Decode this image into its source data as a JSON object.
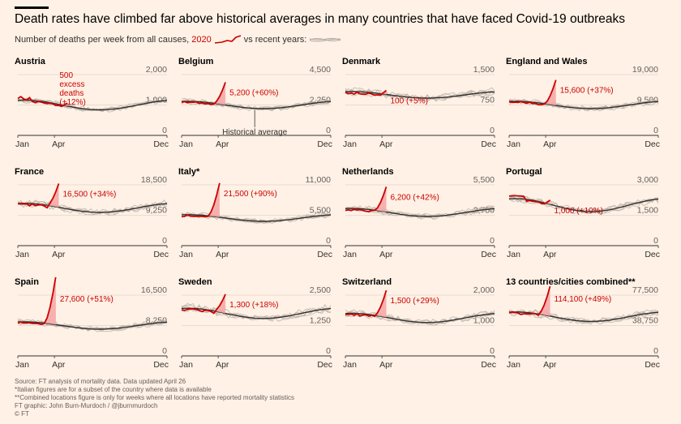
{
  "header": {
    "title": "Death rates have climbed far above historical averages in many countries that have faced Covid-19 outbreaks",
    "subtitle_before": "Number of deaths per week from all causes,",
    "subtitle_year": "2020",
    "subtitle_after": "vs recent years:"
  },
  "colors": {
    "background": "#fff1e5",
    "line_2020": "#cc0000",
    "excess_fill": "#f4a5a5",
    "historical": "#33302e",
    "recent_years": "#b5aca5"
  },
  "footer": {
    "source": "Source: FT analysis of mortality data. Data updated April 26",
    "note1": "*Italian figures are for a subset of the country where data is available",
    "note2": "**Combined locations figure is only for weeks where all locations have reported mortality statistics",
    "credit": "FT graphic: John Burn-Murdoch / @jburnmurdoch",
    "copyright": "© FT"
  },
  "chart_data": [
    {
      "type": "line",
      "title": "Austria",
      "x_labels": [
        "Jan",
        "Apr",
        "Dec"
      ],
      "y_ticks": [
        "2,000",
        "1,000",
        "0"
      ],
      "ylim": [
        0,
        2000
      ],
      "baseline": 1000,
      "pattern": "winter",
      "peak_week": 17,
      "annotation": "500\nexcess\ndeaths\n(+12%)",
      "ann_position": "inline",
      "hist_label": ""
    },
    {
      "type": "line",
      "title": "Belgium",
      "x_labels": [
        "Jan",
        "Apr",
        "Dec"
      ],
      "y_ticks": [
        "4,500",
        "2,250",
        "0"
      ],
      "ylim": [
        0,
        4500
      ],
      "baseline": 2250,
      "pattern": "spike",
      "peak_week": 15,
      "annotation": "5,200 (+60%)",
      "ann_position": "right",
      "hist_label": "Historical average"
    },
    {
      "type": "line",
      "title": "Denmark",
      "x_labels": [
        "Jan",
        "Apr",
        "Dec"
      ],
      "y_ticks": [
        "1,500",
        "750",
        "0"
      ],
      "ylim": [
        0,
        1500
      ],
      "baseline": 1000,
      "pattern": "flat",
      "peak_week": 14,
      "annotation": "100 (+5%)",
      "ann_position": "right",
      "hist_label": ""
    },
    {
      "type": "line",
      "title": "England and Wales",
      "x_labels": [
        "Jan",
        "Apr",
        "Dec"
      ],
      "y_ticks": [
        "19,000",
        "9,500",
        "0"
      ],
      "ylim": [
        0,
        19000
      ],
      "baseline": 9500,
      "pattern": "spike",
      "peak_week": 16,
      "annotation": "15,600 (+37%)",
      "ann_position": "right",
      "hist_label": ""
    },
    {
      "type": "line",
      "title": "France",
      "x_labels": [
        "Jan",
        "Apr",
        "Dec"
      ],
      "y_ticks": [
        "18,500",
        "9,250",
        "0"
      ],
      "ylim": [
        0,
        18500
      ],
      "baseline": 11500,
      "pattern": "spike",
      "peak_week": 14,
      "annotation": "16,500 (+34%)",
      "ann_position": "right",
      "hist_label": ""
    },
    {
      "type": "line",
      "title": "Italy*",
      "x_labels": [
        "Jan",
        "Apr",
        "Dec"
      ],
      "y_ticks": [
        "11,000",
        "5,500",
        "0"
      ],
      "ylim": [
        0,
        11000
      ],
      "baseline": 5000,
      "pattern": "spike",
      "peak_week": 13,
      "annotation": "21,500 (+90%)",
      "ann_position": "right",
      "hist_label": ""
    },
    {
      "type": "line",
      "title": "Netherlands",
      "x_labels": [
        "Jan",
        "Apr",
        "Dec"
      ],
      "y_ticks": [
        "5,500",
        "2,750",
        "0"
      ],
      "ylim": [
        0,
        5500
      ],
      "baseline": 3000,
      "pattern": "spike",
      "peak_week": 14,
      "annotation": "6,200 (+42%)",
      "ann_position": "right",
      "hist_label": ""
    },
    {
      "type": "line",
      "title": "Portugal",
      "x_labels": [
        "Jan",
        "Apr",
        "Dec"
      ],
      "y_ticks": [
        "3,000",
        "1,500",
        "0"
      ],
      "ylim": [
        0,
        3000
      ],
      "baseline": 2000,
      "pattern": "winter2",
      "peak_week": 14,
      "annotation": "1,000 (+10%)",
      "ann_position": "right",
      "hist_label": ""
    },
    {
      "type": "line",
      "title": "Spain",
      "x_labels": [
        "Jan",
        "Apr",
        "Dec"
      ],
      "y_ticks": [
        "16,500",
        "8,250",
        "0"
      ],
      "ylim": [
        0,
        16500
      ],
      "baseline": 8250,
      "pattern": "spike",
      "peak_week": 13,
      "annotation": "27,600 (+51%)",
      "ann_position": "right",
      "hist_label": ""
    },
    {
      "type": "line",
      "title": "Sweden",
      "x_labels": [
        "Jan",
        "Apr",
        "Dec"
      ],
      "y_ticks": [
        "2,500",
        "1,250",
        "0"
      ],
      "ylim": [
        0,
        2500
      ],
      "baseline": 1750,
      "pattern": "spike",
      "peak_week": 15,
      "annotation": "1,300 (+18%)",
      "ann_position": "right",
      "hist_label": ""
    },
    {
      "type": "line",
      "title": "Switzerland",
      "x_labels": [
        "Jan",
        "Apr",
        "Dec"
      ],
      "y_ticks": [
        "2,000",
        "1,000",
        "0"
      ],
      "ylim": [
        0,
        2000
      ],
      "baseline": 1250,
      "pattern": "spike",
      "peak_week": 14,
      "annotation": "1,500 (+29%)",
      "ann_position": "right",
      "hist_label": ""
    },
    {
      "type": "line",
      "title": "13 countries/cities combined**",
      "x_labels": [
        "Jan",
        "Apr",
        "Dec"
      ],
      "y_ticks": [
        "77,500",
        "38,750",
        "0"
      ],
      "ylim": [
        0,
        77500
      ],
      "baseline": 50000,
      "pattern": "spike",
      "peak_week": 14,
      "annotation": "114,100 (+49%)",
      "ann_position": "right",
      "hist_label": ""
    }
  ]
}
